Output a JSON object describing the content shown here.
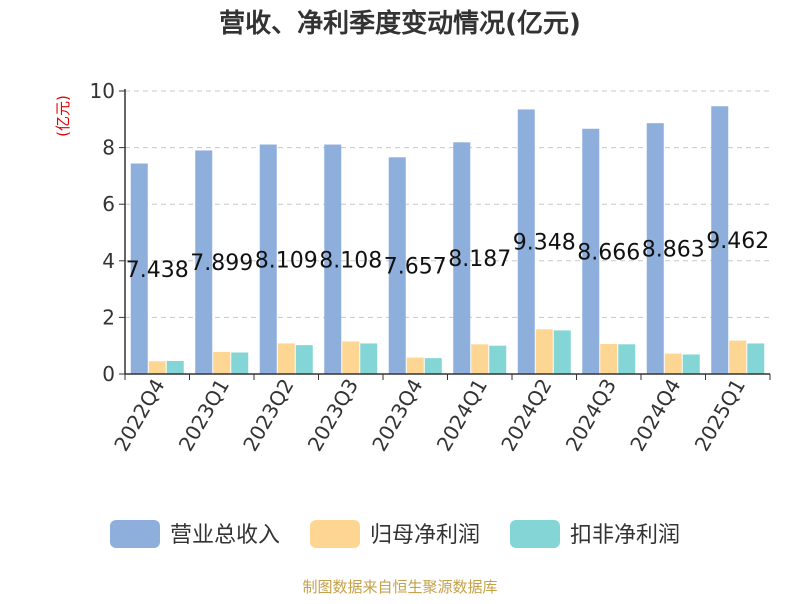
{
  "chart_data": {
    "type": "bar",
    "title": "营收、净利季度变动情况(亿元)",
    "ylabel": "(亿元)",
    "xlabel": "",
    "ylim": [
      0,
      10
    ],
    "yticks": [
      0,
      2,
      4,
      6,
      8,
      10
    ],
    "grid": true,
    "legend_position": "bottom",
    "categories": [
      "2022Q4",
      "2023Q1",
      "2023Q2",
      "2023Q3",
      "2023Q4",
      "2024Q1",
      "2024Q2",
      "2024Q3",
      "2024Q4",
      "2025Q1"
    ],
    "series": [
      {
        "name": "营业总收入",
        "color": "#8eaedb",
        "values": [
          7.438,
          7.899,
          8.109,
          8.108,
          7.657,
          8.187,
          9.348,
          8.666,
          8.863,
          9.462
        ],
        "labels": [
          "7.438",
          "7.899",
          "8.109",
          "8.108",
          "7.657",
          "8.187",
          "9.348",
          "8.666",
          "8.863",
          "9.462"
        ]
      },
      {
        "name": "归母净利润",
        "color": "#fdd694",
        "values": [
          0.45,
          0.78,
          1.08,
          1.15,
          0.58,
          1.05,
          1.58,
          1.06,
          0.72,
          1.18
        ]
      },
      {
        "name": "扣非净利润",
        "color": "#84d5d5",
        "values": [
          0.46,
          0.76,
          1.02,
          1.08,
          0.56,
          1.0,
          1.54,
          1.05,
          0.69,
          1.08
        ]
      }
    ],
    "source": "制图数据来自恒生聚源数据库",
    "colors": {
      "title": "#333333",
      "ylabel": "#e00000",
      "axis": "#333333",
      "grid": "#c8c8c8",
      "source": "#c5a14a"
    }
  }
}
